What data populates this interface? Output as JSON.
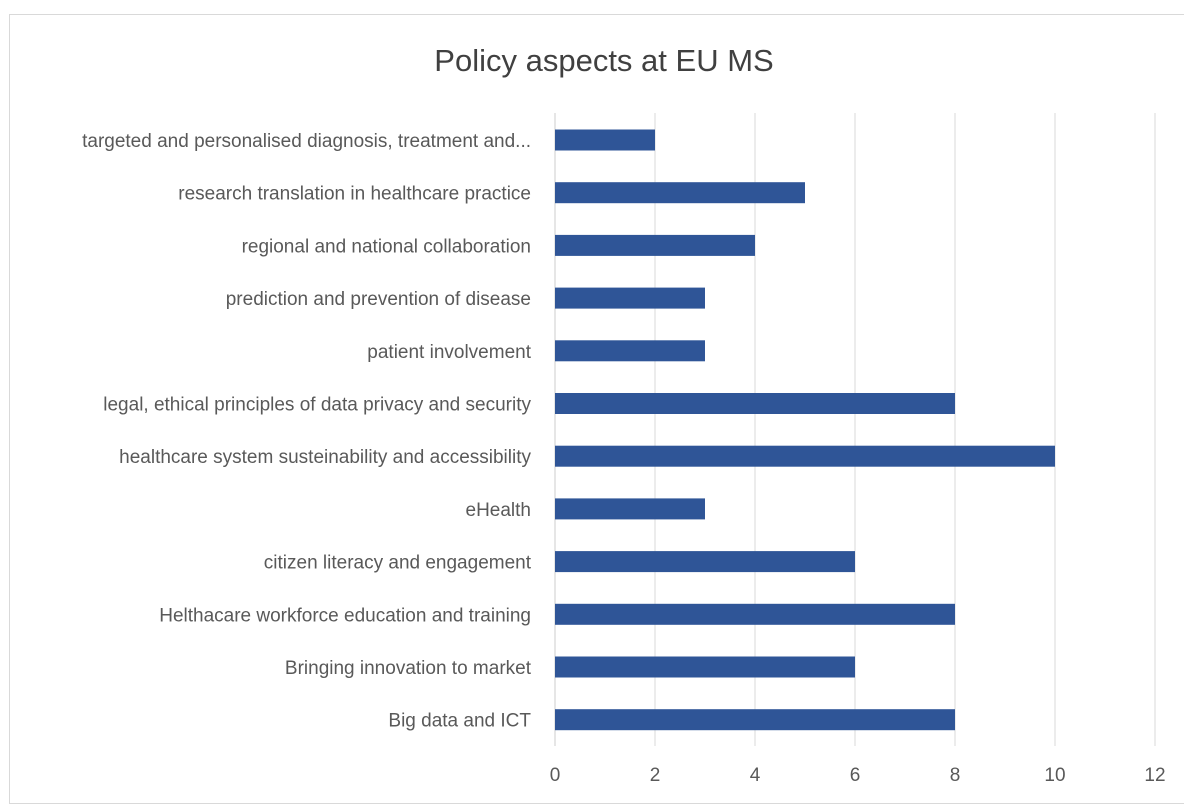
{
  "chart_data": {
    "type": "bar",
    "orientation": "horizontal",
    "title": "Policy aspects at EU MS",
    "xlabel": "",
    "ylabel": "",
    "categories": [
      "targeted and personalised diagnosis, treatment and...",
      "research translation in healthcare practice",
      "regional and national collaboration",
      "prediction and prevention of disease",
      "patient involvement",
      "legal, ethical principles of data privacy and security",
      "healthcare system susteinability and accessibility",
      "eHealth",
      "citizen literacy and engagement",
      "Helthacare workforce education and training",
      "Bringing innovation to market",
      "Big data and ICT"
    ],
    "values": [
      2,
      5,
      4,
      3,
      3,
      8,
      10,
      3,
      6,
      8,
      6,
      8
    ],
    "xlim": [
      0,
      12
    ],
    "xticks": [
      "0",
      "2",
      "4",
      "6",
      "8",
      "10",
      "12"
    ],
    "grid": true,
    "legend": "none",
    "colors": {
      "bar": "#2f5597",
      "grid": "#d9d9d9",
      "text": "#595959",
      "title": "#404040",
      "frame": "#d9d9d9"
    }
  }
}
